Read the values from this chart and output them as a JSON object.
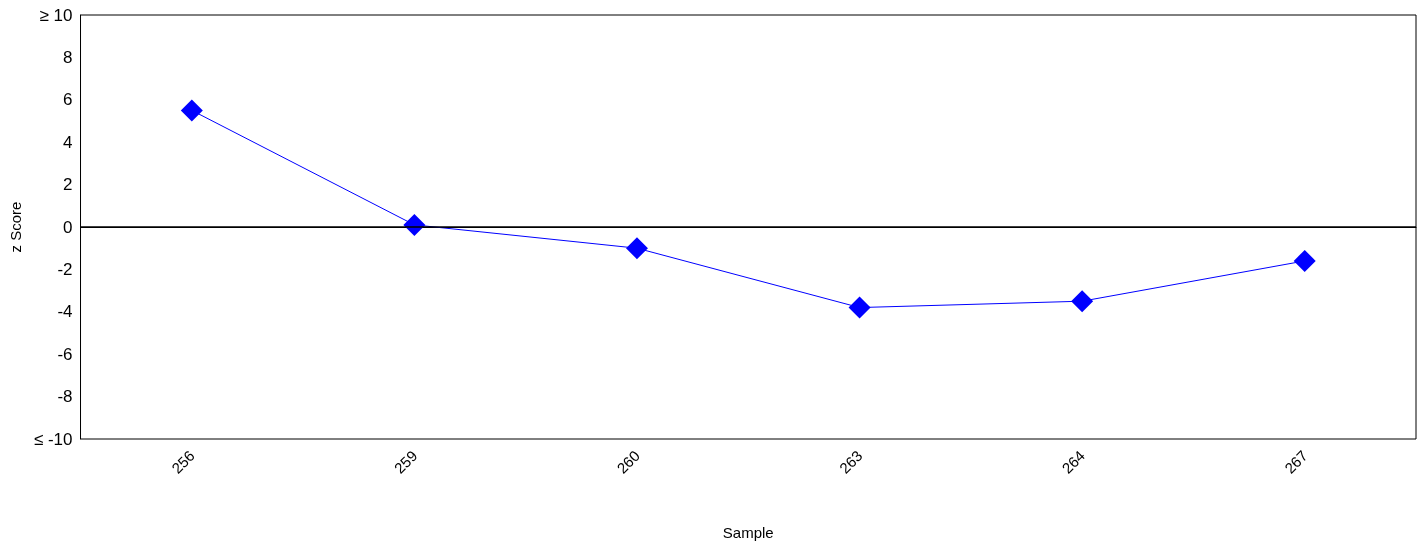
{
  "chart_data": {
    "type": "line",
    "xlabel": "Sample",
    "ylabel": "z Score",
    "categories": [
      "256",
      "259",
      "260",
      "263",
      "264",
      "267"
    ],
    "series": [
      {
        "color": "#0000ff",
        "values": [
          5.5,
          0.1,
          -1.0,
          -3.8,
          -3.5,
          -1.6
        ]
      }
    ],
    "ylim": [
      -10,
      10
    ],
    "yticks": [
      {
        "value": -10,
        "label": "≤ -10"
      },
      -8,
      -6,
      -4,
      -2,
      0,
      2,
      4,
      6,
      8,
      {
        "value": 10,
        "label": "≥ 10"
      }
    ],
    "ref_lines": [
      {
        "axis": "y",
        "value": 0,
        "color": "#000000"
      }
    ],
    "marker": "diamond",
    "line_style": "solid",
    "grid": false
  }
}
